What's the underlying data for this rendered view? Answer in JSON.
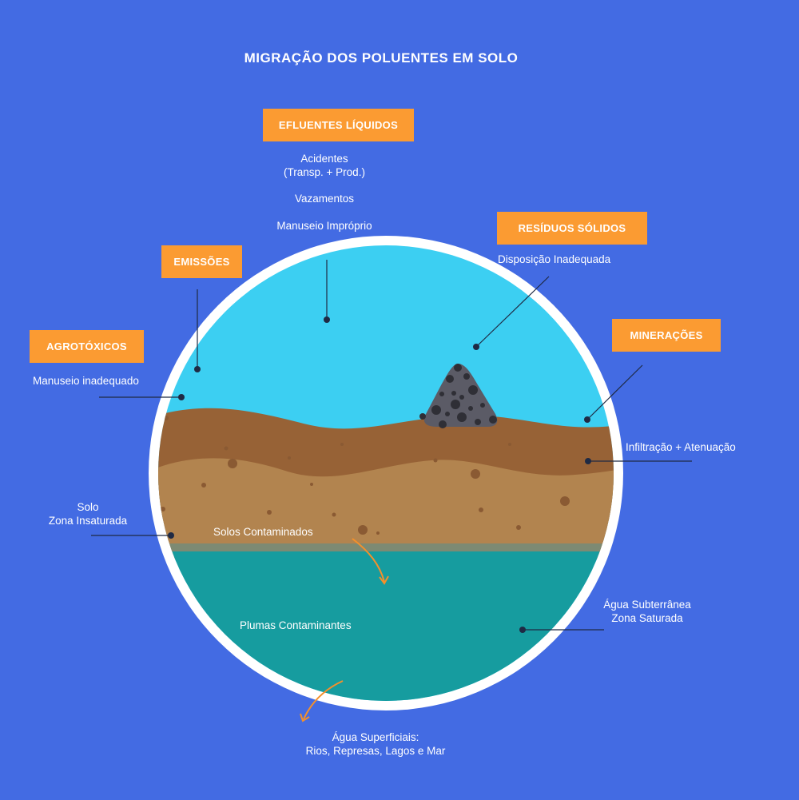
{
  "title": "MIGRAÇÃO DOS POLUENTES EM SOLO",
  "categories": {
    "efluentes": "EFLUENTES LÍQUIDOS",
    "residuos": "RESÍDUOS SÓLIDOS",
    "emissoes": "EMISSÕES",
    "agrotoxicos": "AGROTÓXICOS",
    "mineracoes": "MINERAÇÕES"
  },
  "labels": {
    "acidentes": "Acidentes",
    "acidentes_detail": "(Transp. + Prod.)",
    "vazamentos": "Vazamentos",
    "manuseio_improprio": "Manuseio Impróprio",
    "disposicao": "Disposição Inadequada",
    "manuseio_inadequado": "Manuseio inadequado",
    "infiltracao": "Infiltração + Atenuação",
    "solo": "Solo",
    "zona_insaturada": "Zona Insaturada",
    "solos_contaminados": "Solos Contaminados",
    "plumas": "Plumas Contaminantes",
    "agua_subterranea": "Água Subterrânea",
    "zona_saturada": "Zona Saturada",
    "agua_superficiais": "Água Superficiais:",
    "rios": "Rios, Represas, Lagos e Mar"
  },
  "colors": {
    "background": "#436be3",
    "sky": "#3ccff2",
    "topsoil": "#976236",
    "subsoil": "#b2844f",
    "groundwater": "#169c9f",
    "tag": "#fb9b32",
    "arrow": "#f4902b",
    "pile": "#5b5b66"
  }
}
